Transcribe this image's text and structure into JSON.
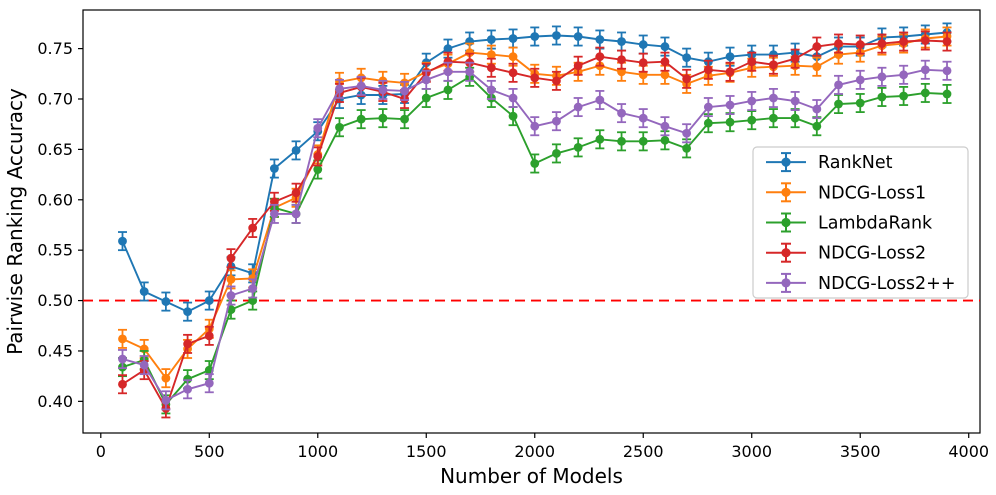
{
  "chart_data": {
    "type": "line",
    "title": "",
    "xlabel": "Number of Models",
    "ylabel": "Pairwise Ranking Accuracy",
    "grid": false,
    "legend_position": "center right",
    "xlim": [
      -82,
      4052
    ],
    "ylim": [
      0.3686,
      0.7883
    ],
    "x_ticks": [
      0,
      500,
      1000,
      1500,
      2000,
      2500,
      3000,
      3500,
      4000
    ],
    "y_ticks": [
      "0.40",
      "0.45",
      "0.50",
      "0.55",
      "0.60",
      "0.65",
      "0.70",
      "0.75"
    ],
    "reference_line": {
      "y": 0.5,
      "color": "#ff0000",
      "style": "dashed"
    },
    "error_bar": 0.009,
    "x": [
      100,
      200,
      300,
      400,
      500,
      600,
      700,
      800,
      900,
      1000,
      1100,
      1200,
      1300,
      1400,
      1500,
      1600,
      1700,
      1800,
      1900,
      2000,
      2100,
      2200,
      2300,
      2400,
      2500,
      2600,
      2700,
      2800,
      2900,
      3000,
      3100,
      3200,
      3300,
      3400,
      3500,
      3600,
      3700,
      3800,
      3900
    ],
    "series": [
      {
        "name": "RankNet",
        "color": "#1f77b4",
        "values": [
          0.559,
          0.509,
          0.499,
          0.489,
          0.5,
          0.534,
          0.527,
          0.631,
          0.649,
          0.668,
          0.7,
          0.704,
          0.704,
          0.705,
          0.736,
          0.75,
          0.757,
          0.759,
          0.76,
          0.762,
          0.763,
          0.762,
          0.759,
          0.757,
          0.754,
          0.752,
          0.741,
          0.737,
          0.742,
          0.744,
          0.744,
          0.746,
          0.742,
          0.752,
          0.752,
          0.761,
          0.762,
          0.764,
          0.766
        ]
      },
      {
        "name": "NDCG-Loss1",
        "color": "#ff7f0e",
        "values": [
          0.462,
          0.452,
          0.423,
          0.452,
          0.472,
          0.521,
          0.522,
          0.592,
          0.602,
          0.645,
          0.717,
          0.721,
          0.718,
          0.716,
          0.727,
          0.735,
          0.746,
          0.744,
          0.742,
          0.725,
          0.723,
          0.727,
          0.733,
          0.727,
          0.724,
          0.724,
          0.715,
          0.723,
          0.726,
          0.731,
          0.732,
          0.733,
          0.732,
          0.744,
          0.746,
          0.753,
          0.755,
          0.76,
          0.762
        ]
      },
      {
        "name": "LambdaRank",
        "color": "#2ca02c",
        "values": [
          0.434,
          0.441,
          0.397,
          0.422,
          0.431,
          0.491,
          0.5,
          0.592,
          0.586,
          0.63,
          0.672,
          0.68,
          0.681,
          0.68,
          0.701,
          0.709,
          0.722,
          0.701,
          0.683,
          0.636,
          0.646,
          0.652,
          0.66,
          0.658,
          0.658,
          0.659,
          0.651,
          0.676,
          0.677,
          0.679,
          0.681,
          0.681,
          0.673,
          0.695,
          0.696,
          0.702,
          0.703,
          0.706,
          0.705
        ]
      },
      {
        "name": "NDCG-Loss2",
        "color": "#d62728",
        "values": [
          0.417,
          0.431,
          0.393,
          0.457,
          0.465,
          0.542,
          0.572,
          0.598,
          0.607,
          0.643,
          0.706,
          0.712,
          0.707,
          0.7,
          0.726,
          0.737,
          0.736,
          0.731,
          0.726,
          0.721,
          0.718,
          0.733,
          0.742,
          0.739,
          0.736,
          0.737,
          0.72,
          0.729,
          0.727,
          0.737,
          0.734,
          0.74,
          0.752,
          0.755,
          0.754,
          0.755,
          0.757,
          0.758,
          0.757
        ]
      },
      {
        "name": "NDCG-Loss2++",
        "color": "#9467bd",
        "values": [
          0.442,
          0.436,
          0.401,
          0.412,
          0.418,
          0.505,
          0.512,
          0.586,
          0.586,
          0.671,
          0.71,
          0.713,
          0.709,
          0.708,
          0.719,
          0.727,
          0.727,
          0.709,
          0.701,
          0.673,
          0.678,
          0.692,
          0.699,
          0.686,
          0.681,
          0.673,
          0.666,
          0.692,
          0.694,
          0.698,
          0.701,
          0.698,
          0.69,
          0.714,
          0.719,
          0.722,
          0.724,
          0.729,
          0.728
        ]
      }
    ]
  }
}
